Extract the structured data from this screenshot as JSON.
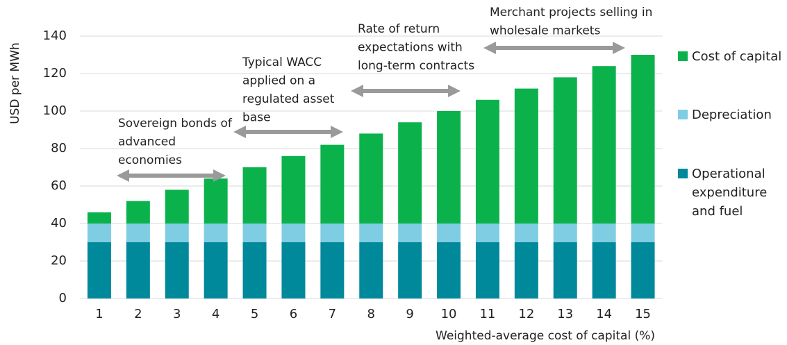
{
  "chart_data": {
    "type": "stacked_bar",
    "categories": [
      "1",
      "2",
      "3",
      "4",
      "5",
      "6",
      "7",
      "8",
      "9",
      "10",
      "11",
      "12",
      "13",
      "14",
      "15"
    ],
    "series": [
      {
        "name": "Operational expenditure and fuel",
        "color": "#00889b",
        "values": [
          30,
          30,
          30,
          30,
          30,
          30,
          30,
          30,
          30,
          30,
          30,
          30,
          30,
          30,
          30
        ]
      },
      {
        "name": "Depreciation",
        "color": "#7fcde2",
        "values": [
          10,
          10,
          10,
          10,
          10,
          10,
          10,
          10,
          10,
          10,
          10,
          10,
          10,
          10,
          10
        ]
      },
      {
        "name": "Cost of capital",
        "color": "#0bb24b",
        "values": [
          6,
          12,
          18,
          24,
          30,
          36,
          42,
          48,
          54,
          60,
          66,
          72,
          78,
          84,
          90
        ]
      }
    ],
    "ylim": [
      0,
      140
    ],
    "yticks": [
      0,
      20,
      40,
      60,
      80,
      100,
      120,
      140
    ],
    "grid": true,
    "y_label": "USD per MWh",
    "x_label": "Weighted-average cost of capital (%)",
    "annotations": [
      [
        "Sovereign bonds of",
        "advanced",
        "economies"
      ],
      [
        "Typical WACC",
        "applied on a",
        "regulated asset",
        "base"
      ],
      [
        "Rate of return",
        "expectations with",
        "long-term contracts"
      ],
      [
        "Merchant projects selling in",
        "wholesale markets"
      ]
    ]
  }
}
